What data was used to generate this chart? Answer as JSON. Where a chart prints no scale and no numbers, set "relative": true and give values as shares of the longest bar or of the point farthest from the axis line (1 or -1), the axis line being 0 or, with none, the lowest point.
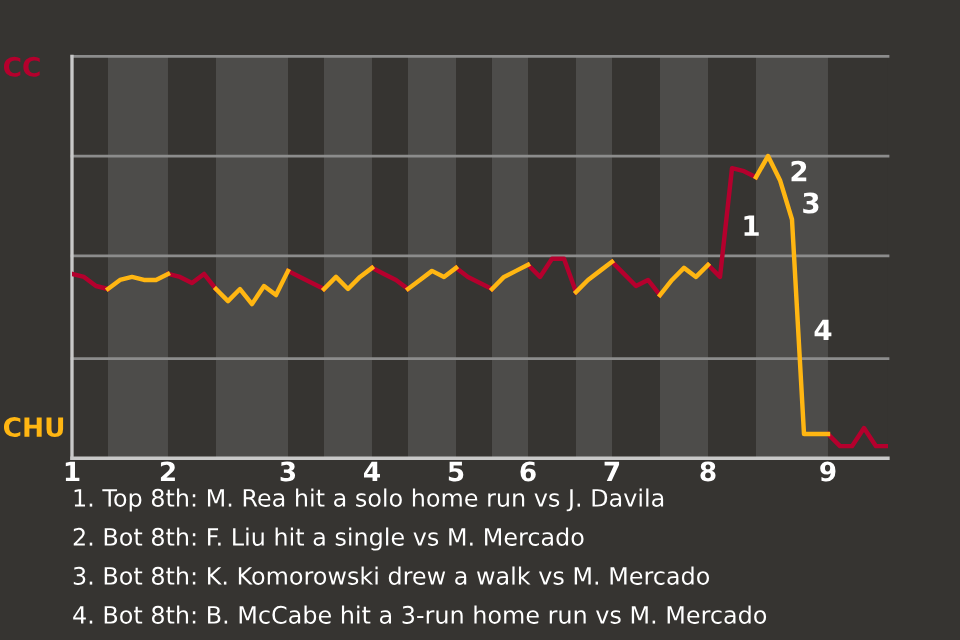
{
  "chart_data": {
    "type": "line",
    "relative": true,
    "line_style": "solid",
    "marker": "none",
    "tick_labels": "x",
    "categories": [
      "1",
      null,
      null,
      null,
      null,
      null,
      null,
      null,
      "2",
      null,
      null,
      null,
      null,
      null,
      null,
      null,
      null,
      null,
      "3",
      null,
      null,
      null,
      null,
      null,
      null,
      "4",
      null,
      null,
      null,
      null,
      null,
      null,
      "5",
      null,
      null,
      null,
      null,
      null,
      "6",
      null,
      null,
      null,
      null,
      null,
      null,
      "7",
      null,
      null,
      null,
      null,
      null,
      null,
      null,
      "8",
      null,
      null,
      null,
      null,
      null,
      null,
      null,
      null,
      null,
      "9",
      null,
      null,
      null,
      null,
      null
    ],
    "ref_lines": [
      {
        "axis": "y",
        "value": 0.33,
        "color": "#8c8c8c"
      },
      {
        "axis": "y",
        "value": 0.67,
        "color": "#8c8c8c"
      },
      {
        "axis": "y",
        "value": 1.0,
        "color": "#8c8c8c"
      },
      {
        "axis": "y",
        "value": 1.33,
        "color": "#8c8c8c"
      }
    ],
    "series": [
      {
        "name": "CC",
        "color": "#b5002d",
        "values": [
          0.61,
          0.6,
          0.57,
          0.56,
          null,
          null,
          null,
          null,
          0.61,
          0.6,
          0.58,
          0.61,
          0.56,
          null,
          null,
          null,
          null,
          null,
          0.62,
          0.6,
          0.58,
          0.56,
          null,
          null,
          null,
          0.63,
          0.61,
          0.59,
          0.56,
          null,
          null,
          null,
          0.63,
          0.6,
          0.58,
          0.56,
          null,
          null,
          0.64,
          0.6,
          0.66,
          0.66,
          0.55,
          null,
          null,
          0.65,
          0.61,
          0.57,
          0.59,
          0.54,
          null,
          null,
          null,
          0.64,
          0.6,
          0.96,
          0.95,
          0.93,
          null,
          null,
          null,
          null,
          null,
          0.08,
          0.04,
          0.04,
          0.1,
          0.04,
          0.04
        ]
      },
      {
        "name": "CHU",
        "color": "#ffb612",
        "values": [
          null,
          null,
          null,
          0.56,
          0.59,
          0.6,
          0.59,
          0.59,
          0.61,
          null,
          null,
          null,
          0.56,
          0.52,
          0.56,
          0.51,
          0.57,
          0.54,
          0.62,
          null,
          null,
          0.56,
          0.6,
          0.56,
          0.6,
          0.63,
          null,
          null,
          0.56,
          0.59,
          0.62,
          0.6,
          0.63,
          null,
          null,
          0.56,
          0.6,
          0.62,
          0.64,
          null,
          null,
          null,
          0.55,
          0.59,
          0.62,
          0.65,
          null,
          null,
          null,
          0.54,
          0.59,
          0.63,
          0.6,
          0.64,
          null,
          null,
          null,
          0.93,
          1.0,
          0.92,
          0.79,
          0.08,
          0.08,
          0.08,
          null,
          null,
          null,
          null,
          null
        ]
      }
    ],
    "annotations": [
      "1",
      "2",
      "3",
      "4",
      "1. Top 8th: M. Rea hit a solo home run vs J. Davila",
      "2. Bot 8th: F. Liu hit a single vs M. Mercado",
      "3. Bot 8th: K. Komorowski drew a walk vs M. Mercado",
      "4. Bot 8th: B. McCabe hit a 3-run home run vs M. Mercado"
    ]
  }
}
